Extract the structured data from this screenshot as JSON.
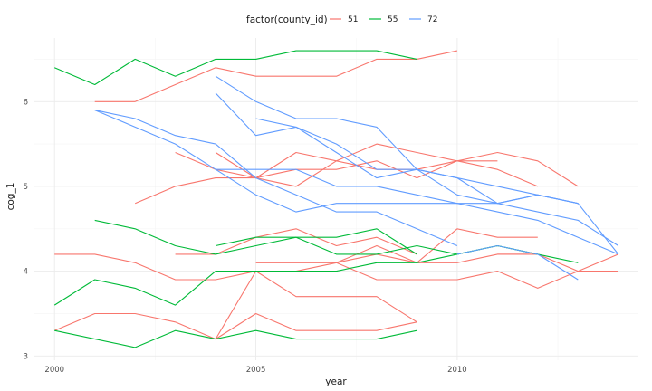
{
  "chart_data": {
    "type": "line",
    "xlabel": "year",
    "ylabel": "cog_1",
    "xlim": [
      1999.5,
      2014.5
    ],
    "ylim": [
      2.95,
      6.75
    ],
    "x_ticks": [
      2000,
      2005,
      2010
    ],
    "x_tick_labels": [
      "2000",
      "2005",
      "2010"
    ],
    "y_ticks": [
      3,
      4,
      5,
      6
    ],
    "y_tick_labels": [
      "3",
      "4",
      "5",
      "6"
    ],
    "grid": true,
    "legend": {
      "position": "top",
      "title": "factor(county_id)",
      "entries": [
        {
          "label": "51",
          "color": "#F8766D"
        },
        {
          "label": "55",
          "color": "#00BA38"
        },
        {
          "label": "72",
          "color": "#619CFF"
        }
      ]
    },
    "series": [
      {
        "group": "51",
        "x": [
          2001,
          2002,
          2003,
          2004,
          2005,
          2006,
          2007,
          2008,
          2009,
          2010
        ],
        "y": [
          6.0,
          6.0,
          6.2,
          6.4,
          6.3,
          6.3,
          6.3,
          6.5,
          6.5,
          6.6
        ]
      },
      {
        "group": "51",
        "x": [
          2002,
          2003,
          2004,
          2005,
          2006,
          2007,
          2008,
          2009,
          2010,
          2011,
          2012
        ],
        "y": [
          4.8,
          5.0,
          5.1,
          5.1,
          5.4,
          5.3,
          5.5,
          5.4,
          5.3,
          5.2,
          5.0
        ]
      },
      {
        "group": "51",
        "x": [
          2003,
          2004,
          2005,
          2006,
          2007,
          2008,
          2009,
          2010,
          2011,
          2012,
          2013
        ],
        "y": [
          5.4,
          5.2,
          5.1,
          5.0,
          5.3,
          5.2,
          5.2,
          5.3,
          5.4,
          5.3,
          5.0
        ]
      },
      {
        "group": "51",
        "x": [
          2004,
          2005,
          2006,
          2007,
          2008,
          2009,
          2010,
          2011
        ],
        "y": [
          5.4,
          5.1,
          5.2,
          5.2,
          5.3,
          5.1,
          5.3,
          5.3
        ]
      },
      {
        "group": "51",
        "x": [
          2003,
          2004,
          2005,
          2006,
          2007,
          2008,
          2009
        ],
        "y": [
          4.2,
          4.2,
          4.4,
          4.5,
          4.3,
          4.4,
          4.2
        ]
      },
      {
        "group": "51",
        "x": [
          2000,
          2001,
          2002,
          2003,
          2004,
          2005,
          2006,
          2007,
          2008,
          2009,
          2010,
          2011,
          2012
        ],
        "y": [
          4.2,
          4.2,
          4.1,
          3.9,
          3.9,
          4.0,
          4.0,
          4.1,
          4.3,
          4.1,
          4.1,
          4.2,
          4.2
        ]
      },
      {
        "group": "51",
        "x": [
          2005,
          2006,
          2007,
          2008,
          2009,
          2010,
          2011,
          2012
        ],
        "y": [
          4.1,
          4.1,
          4.1,
          4.2,
          4.1,
          4.5,
          4.4,
          4.4
        ]
      },
      {
        "group": "51",
        "x": [
          2007,
          2008,
          2009,
          2010,
          2011,
          2012,
          2013,
          2014
        ],
        "y": [
          4.1,
          3.9,
          3.9,
          3.9,
          4.0,
          3.8,
          4.0,
          4.0
        ]
      },
      {
        "group": "51",
        "x": [
          2011,
          2012,
          2013,
          2014
        ],
        "y": [
          4.2,
          4.2,
          4.0,
          4.2
        ]
      },
      {
        "group": "51",
        "x": [
          2000,
          2001,
          2002,
          2003,
          2004,
          2005,
          2006,
          2007,
          2008,
          2009
        ],
        "y": [
          3.3,
          3.5,
          3.5,
          3.4,
          3.2,
          3.5,
          3.3,
          3.3,
          3.3,
          3.4
        ]
      },
      {
        "group": "51",
        "x": [
          2004,
          2005,
          2006,
          2007,
          2008,
          2009
        ],
        "y": [
          3.2,
          4.0,
          3.7,
          3.7,
          3.7,
          3.4
        ]
      },
      {
        "group": "55",
        "x": [
          2000,
          2001,
          2002,
          2003,
          2004,
          2005,
          2006,
          2007,
          2008,
          2009
        ],
        "y": [
          6.4,
          6.2,
          6.5,
          6.3,
          6.5,
          6.5,
          6.6,
          6.6,
          6.6,
          6.5
        ]
      },
      {
        "group": "55",
        "x": [
          2001,
          2002,
          2003,
          2004,
          2005,
          2006,
          2007,
          2008,
          2009,
          2010,
          2011,
          2012,
          2013
        ],
        "y": [
          4.6,
          4.5,
          4.3,
          4.2,
          4.3,
          4.4,
          4.2,
          4.2,
          4.3,
          4.2,
          4.3,
          4.2,
          4.1
        ]
      },
      {
        "group": "55",
        "x": [
          2004,
          2005,
          2006,
          2007,
          2008,
          2009
        ],
        "y": [
          4.3,
          4.4,
          4.4,
          4.4,
          4.5,
          4.2
        ]
      },
      {
        "group": "55",
        "x": [
          2000,
          2001,
          2002,
          2003,
          2004,
          2005,
          2006,
          2007,
          2008,
          2009,
          2010,
          2011,
          2012
        ],
        "y": [
          3.6,
          3.9,
          3.8,
          3.6,
          4.0,
          4.0,
          4.0,
          4.0,
          4.1,
          4.1,
          4.2,
          4.3,
          4.2
        ]
      },
      {
        "group": "55",
        "x": [
          2000,
          2002,
          2003,
          2004,
          2005,
          2006,
          2007,
          2008,
          2009
        ],
        "y": [
          3.3,
          3.1,
          3.3,
          3.2,
          3.3,
          3.2,
          3.2,
          3.2,
          3.3
        ]
      },
      {
        "group": "72",
        "x": [
          2001,
          2002,
          2003,
          2004,
          2005,
          2006,
          2007,
          2008,
          2009,
          2010
        ],
        "y": [
          5.9,
          5.8,
          5.6,
          5.5,
          5.1,
          4.9,
          4.7,
          4.7,
          4.5,
          4.3
        ]
      },
      {
        "group": "72",
        "x": [
          2001,
          2002,
          2003,
          2004,
          2005,
          2006,
          2007,
          2008,
          2009,
          2010,
          2011,
          2012,
          2013
        ],
        "y": [
          5.9,
          5.7,
          5.5,
          5.2,
          4.9,
          4.7,
          4.8,
          4.8,
          4.8,
          4.8,
          4.8,
          4.9,
          4.8
        ]
      },
      {
        "group": "72",
        "x": [
          2004,
          2005,
          2006,
          2007,
          2008,
          2009,
          2010,
          2011,
          2012,
          2013
        ],
        "y": [
          6.1,
          5.6,
          5.7,
          5.5,
          5.2,
          5.2,
          5.1,
          4.8,
          4.9,
          4.8
        ]
      },
      {
        "group": "72",
        "x": [
          2004,
          2005,
          2006,
          2007,
          2008,
          2009,
          2010,
          2011,
          2012,
          2013,
          2014
        ],
        "y": [
          6.3,
          6.0,
          5.8,
          5.8,
          5.7,
          5.2,
          5.1,
          5.0,
          4.9,
          4.8,
          4.2
        ]
      },
      {
        "group": "72",
        "x": [
          2005,
          2006,
          2007,
          2008,
          2009,
          2010,
          2011,
          2012,
          2013,
          2014
        ],
        "y": [
          5.8,
          5.7,
          5.4,
          5.1,
          5.2,
          4.9,
          4.8,
          4.7,
          4.6,
          4.3
        ]
      },
      {
        "group": "72",
        "x": [
          2004,
          2005,
          2006,
          2007,
          2008,
          2009,
          2010,
          2011,
          2012,
          2013,
          2014
        ],
        "y": [
          5.2,
          5.2,
          5.2,
          5.0,
          5.0,
          4.9,
          4.8,
          4.7,
          4.6,
          4.4,
          4.2
        ]
      },
      {
        "group": "72",
        "x": [
          2010,
          2011,
          2012,
          2013
        ],
        "y": [
          4.2,
          4.3,
          4.2,
          3.9
        ]
      }
    ]
  }
}
